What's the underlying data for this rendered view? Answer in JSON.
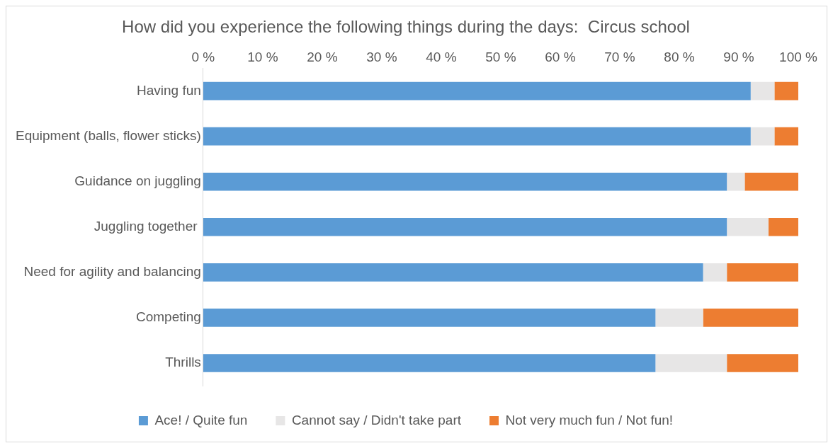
{
  "chart_data": {
    "type": "bar",
    "orientation": "horizontal",
    "stacked": true,
    "title": "How did you experience the following things during the days:  Circus school",
    "categories": [
      "Having fun",
      "Equipment (balls, flower sticks)",
      "Guidance on juggling",
      "Juggling together ",
      "Need for agility and balancing",
      "Competing",
      "Thrills"
    ],
    "series": [
      {
        "name": "Ace! / Quite fun",
        "color": "#5b9bd5",
        "values": [
          92,
          92,
          88,
          88,
          84,
          76,
          76
        ]
      },
      {
        "name": "Cannot say / Didn't take part",
        "color": "#e7e6e6",
        "values": [
          4,
          4,
          3,
          7,
          4,
          8,
          12
        ]
      },
      {
        "name": "Not very much fun / Not fun!",
        "color": "#ed7d31",
        "values": [
          4,
          4,
          9,
          5,
          12,
          16,
          12
        ]
      }
    ],
    "xlim": [
      0,
      100
    ],
    "xticks": [
      {
        "value": 0,
        "label": "0 %"
      },
      {
        "value": 10,
        "label": "10 %"
      },
      {
        "value": 20,
        "label": "20 %"
      },
      {
        "value": 30,
        "label": "30 %"
      },
      {
        "value": 40,
        "label": "40 %"
      },
      {
        "value": 50,
        "label": "50 %"
      },
      {
        "value": 60,
        "label": "60 %"
      },
      {
        "value": 70,
        "label": "70 %"
      },
      {
        "value": 80,
        "label": "80 %"
      },
      {
        "value": 90,
        "label": "90 %"
      },
      {
        "value": 100,
        "label": "100 %"
      }
    ],
    "grid": false,
    "legend": "bottom"
  }
}
